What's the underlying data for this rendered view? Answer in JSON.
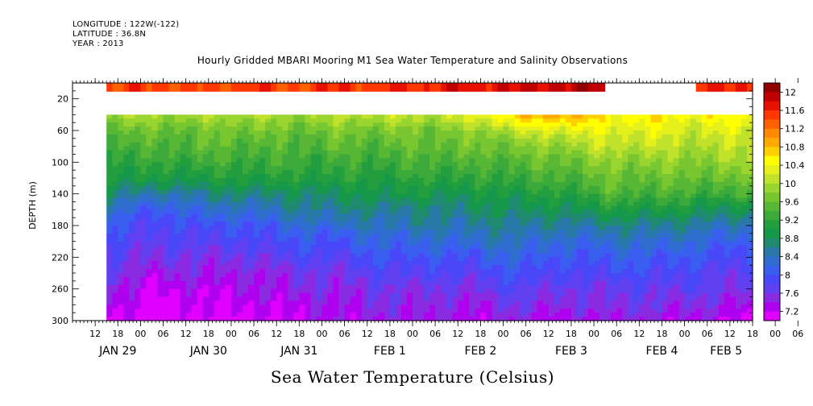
{
  "header": {
    "longitude": "LONGITUDE : 122W(-122)",
    "latitude": "LATITUDE : 36.8N",
    "year": "YEAR : 2013"
  },
  "chart_data": {
    "type": "heatmap",
    "title": "Hourly Gridded MBARI Mooring M1 Sea Water Temperature and Salinity Observations",
    "subtitle": "Sea Water Temperature (Celsius)",
    "ylabel": "DEPTH (m)",
    "xlabel": "",
    "ylim": [
      300,
      0
    ],
    "y_ticks": [
      20,
      60,
      100,
      140,
      180,
      220,
      260,
      300
    ],
    "x_hour_ticks": [
      "12",
      "18",
      "00",
      "06",
      "12",
      "18",
      "00",
      "06",
      "12",
      "18",
      "00",
      "06",
      "12",
      "18",
      "00",
      "06",
      "12",
      "18",
      "00",
      "06",
      "12",
      "18",
      "00",
      "06",
      "12",
      "18",
      "00",
      "06",
      "12",
      "18",
      "00",
      "06"
    ],
    "x_date_labels": [
      {
        "label": "JAN 29",
        "hour": 18
      },
      {
        "label": "JAN 30",
        "hour": 42
      },
      {
        "label": "JAN 31",
        "hour": 66
      },
      {
        "label": "FEB  1",
        "hour": 90
      },
      {
        "label": "FEB  2",
        "hour": 114
      },
      {
        "label": "FEB  3",
        "hour": 138
      },
      {
        "label": "FEB  4",
        "hour": 162
      },
      {
        "label": "FEB  5",
        "hour": 179
      }
    ],
    "colorbar": {
      "labels": [
        "12",
        "11.6",
        "11.2",
        "10.8",
        "10.4",
        "10",
        "9.6",
        "9.2",
        "8.8",
        "8.4",
        "8",
        "7.6",
        "7.2"
      ],
      "levels": [
        7.2,
        7.4,
        7.6,
        7.8,
        8.0,
        8.2,
        8.4,
        8.6,
        8.8,
        9.0,
        9.2,
        9.4,
        9.6,
        9.8,
        10.0,
        10.2,
        10.4,
        10.6,
        10.8,
        11.0,
        11.2,
        11.4,
        11.6,
        11.8,
        12.0,
        12.2
      ],
      "colors": [
        "#e000ff",
        "#b000f0",
        "#8a2be2",
        "#6040f0",
        "#4848f8",
        "#3a5ef0",
        "#2f6ecf",
        "#2878a8",
        "#1f8a70",
        "#16984a",
        "#229e3e",
        "#3caa3a",
        "#58b835",
        "#78c630",
        "#9ad42e",
        "#c0e22a",
        "#e6f01c",
        "#ffff00",
        "#ffd000",
        "#ffaa00",
        "#ff8a00",
        "#ff6000",
        "#ff3800",
        "#e81000",
        "#c00000",
        "#900000"
      ]
    },
    "depth_levels": [
      18,
      35,
      60,
      80,
      100,
      120,
      140,
      160,
      180,
      200,
      220,
      240,
      260,
      280,
      300
    ],
    "x_range_hours": [
      6,
      186
    ],
    "data_hours": [
      15,
      186
    ],
    "surface_gaps": [
      [
        15,
        171,
        12,
        12
      ]
    ],
    "profiles_note": "temperature at each depth level by time",
    "time_samples": [
      15,
      27,
      39,
      51,
      63,
      75,
      87,
      99,
      111,
      123,
      135,
      147,
      159,
      171,
      183
    ],
    "temperature": [
      [
        11.6,
        11.7,
        11.6,
        11.7,
        11.6,
        11.8,
        11.7,
        11.8,
        11.9,
        12.0,
        12.1,
        null,
        null,
        11.8,
        11.8
      ],
      [
        10.2,
        10.3,
        10.2,
        10.3,
        10.2,
        10.3,
        10.4,
        10.4,
        10.6,
        11.2,
        11.4,
        10.8,
        10.8,
        10.7,
        10.8
      ],
      [
        9.8,
        9.8,
        9.8,
        9.9,
        9.8,
        9.9,
        9.9,
        9.9,
        10.0,
        10.3,
        10.5,
        10.5,
        10.5,
        10.4,
        10.5
      ],
      [
        9.6,
        9.6,
        9.7,
        9.7,
        9.6,
        9.7,
        9.7,
        9.8,
        9.8,
        9.9,
        10.1,
        10.3,
        10.3,
        10.2,
        10.3
      ],
      [
        9.4,
        9.4,
        9.5,
        9.5,
        9.5,
        9.5,
        9.5,
        9.6,
        9.6,
        9.7,
        9.8,
        10.0,
        10.0,
        10.0,
        10.1
      ],
      [
        9.2,
        9.2,
        9.2,
        9.3,
        9.3,
        9.3,
        9.3,
        9.4,
        9.4,
        9.5,
        9.6,
        9.8,
        9.8,
        9.8,
        9.8
      ],
      [
        8.9,
        8.6,
        8.8,
        8.9,
        8.9,
        9.0,
        9.1,
        9.1,
        9.1,
        9.2,
        9.3,
        9.6,
        9.6,
        9.5,
        9.5
      ],
      [
        8.6,
        8.2,
        8.5,
        8.5,
        8.7,
        8.8,
        8.8,
        8.8,
        8.9,
        9.0,
        9.0,
        9.2,
        9.2,
        9.1,
        9.0
      ],
      [
        8.3,
        8.0,
        8.2,
        8.2,
        8.4,
        8.5,
        8.6,
        8.7,
        8.7,
        8.8,
        8.7,
        8.8,
        8.8,
        8.7,
        8.6
      ],
      [
        8.1,
        7.9,
        8.0,
        8.0,
        8.2,
        8.2,
        8.4,
        8.4,
        8.5,
        8.6,
        8.4,
        8.5,
        8.5,
        8.4,
        8.3
      ],
      [
        7.9,
        7.8,
        7.8,
        7.8,
        8.0,
        8.0,
        8.2,
        8.2,
        8.2,
        8.4,
        8.2,
        8.3,
        8.3,
        8.2,
        8.1
      ],
      [
        7.8,
        7.6,
        7.7,
        7.6,
        7.8,
        7.8,
        8.0,
        8.0,
        8.0,
        8.2,
        8.0,
        8.1,
        8.1,
        8.0,
        7.9
      ],
      [
        7.6,
        7.4,
        7.5,
        7.5,
        7.7,
        7.7,
        7.8,
        7.8,
        7.8,
        8.0,
        7.8,
        7.9,
        7.9,
        7.9,
        7.8
      ],
      [
        7.5,
        7.3,
        7.4,
        7.4,
        7.5,
        7.6,
        7.7,
        7.7,
        7.6,
        7.8,
        7.7,
        7.8,
        7.8,
        7.7,
        7.6
      ],
      [
        7.4,
        7.2,
        7.3,
        7.3,
        7.4,
        7.5,
        7.6,
        7.6,
        7.5,
        7.6,
        7.5,
        7.6,
        7.6,
        7.5,
        7.4
      ]
    ]
  }
}
